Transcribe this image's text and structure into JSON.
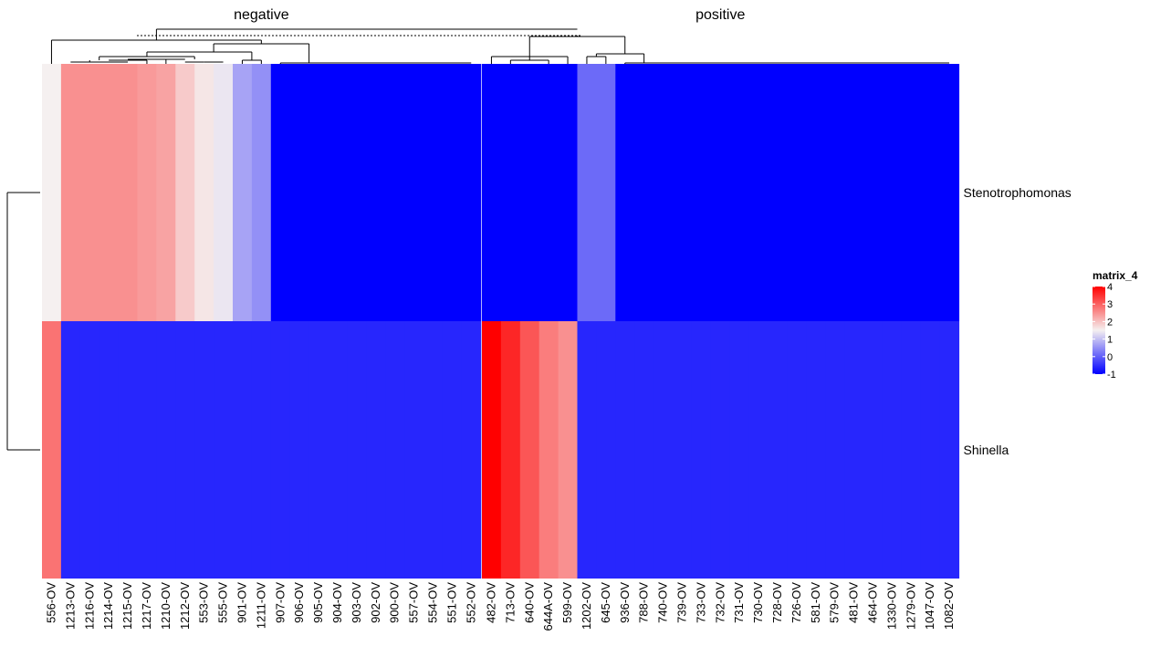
{
  "chart_data": {
    "type": "heatmap",
    "panels": [
      {
        "title": "negative",
        "columns": [
          "556-OV",
          "1213-OV",
          "1216-OV",
          "1214-OV",
          "1215-OV",
          "1217-OV",
          "1210-OV",
          "1212-OV",
          "553-OV",
          "555-OV",
          "901-OV",
          "1211-OV",
          "907-OV",
          "906-OV",
          "905-OV",
          "904-OV",
          "903-OV",
          "902-OV",
          "900-OV",
          "557-OV",
          "554-OV",
          "551-OV",
          "552-OV"
        ]
      },
      {
        "title": "positive",
        "columns": [
          "482-OV",
          "713-OV",
          "640-OV",
          "644A-OV",
          "599-OV",
          "1202-OV",
          "645-OV",
          "936-OV",
          "788-OV",
          "740-OV",
          "739-OV",
          "733-OV",
          "732-OV",
          "731-OV",
          "730-OV",
          "728-OV",
          "726-OV",
          "581-OV",
          "579-OV",
          "481-OV",
          "464-OV",
          "1330-OV",
          "1279-OV",
          "1047-OV",
          "1082-OV"
        ]
      }
    ],
    "rows": [
      "Stenotrophomonas",
      "Shinella"
    ],
    "values": {
      "Stenotrophomonas": [
        [
          1.5,
          2.5,
          2.5,
          2.5,
          2.5,
          2.4,
          2.3,
          1.9,
          1.6,
          1.4,
          0.7,
          0.5,
          -1,
          -1,
          -1,
          -1,
          -1,
          -1,
          -1,
          -1,
          -1,
          -1,
          -1
        ],
        [
          -1,
          -1,
          -1,
          -1,
          -1,
          0.1,
          0.1,
          -1,
          -1,
          -1,
          -1,
          -1,
          -1,
          -1,
          -1,
          -1,
          -1,
          -1,
          -1,
          -1,
          -1,
          -1,
          -1,
          -1,
          -1
        ]
      ],
      "Shinella": [
        [
          2.8,
          -0.6,
          -0.6,
          -0.6,
          -0.6,
          -0.6,
          -0.6,
          -0.6,
          -0.6,
          -0.6,
          -0.6,
          -0.6,
          -0.6,
          -0.6,
          -0.6,
          -0.6,
          -0.6,
          -0.6,
          -0.6,
          -0.6,
          -0.6,
          -0.6,
          -0.6
        ],
        [
          4.0,
          3.6,
          3.1,
          2.7,
          2.5,
          -0.6,
          -0.6,
          -0.6,
          -0.6,
          -0.6,
          -0.6,
          -0.6,
          -0.6,
          -0.6,
          -0.6,
          -0.6,
          -0.6,
          -0.6,
          -0.6,
          -0.6,
          -0.6,
          -0.6,
          -0.6,
          -0.6,
          -0.6
        ]
      ]
    },
    "color_scale": {
      "stops": [
        {
          "value": -1,
          "color": "#0000ff"
        },
        {
          "value": 1.5,
          "color": "#f5f0f0"
        },
        {
          "value": 4,
          "color": "#ff0000"
        }
      ]
    },
    "legend": {
      "title": "matrix_4",
      "ticks": [
        4,
        3,
        2,
        1,
        0,
        -1
      ],
      "placement": "right"
    },
    "dendrograms": {
      "rows": true,
      "columns": true
    }
  }
}
